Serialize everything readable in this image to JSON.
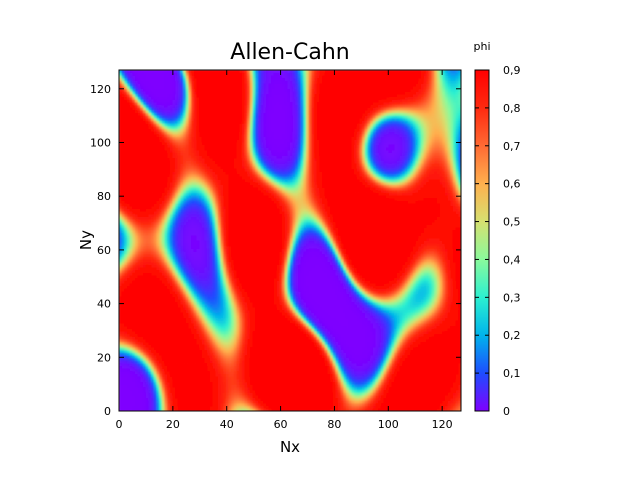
{
  "chart_data": {
    "type": "heatmap",
    "title": "Allen-Cahn",
    "xlabel": "Nx",
    "ylabel": "Ny",
    "colorbar_label": "phi",
    "xlim": [
      0,
      127
    ],
    "ylim": [
      0,
      127
    ],
    "x_ticks": [
      "0",
      "20",
      "40",
      "60",
      "80",
      "100",
      "120"
    ],
    "y_ticks": [
      "0",
      "20",
      "40",
      "60",
      "80",
      "100",
      "120"
    ],
    "color_range": [
      0,
      0.9
    ],
    "colorbar_ticks": [
      "0",
      "0,1",
      "0,2",
      "0,3",
      "0,4",
      "0,5",
      "0,6",
      "0,7",
      "0,8",
      "0,9"
    ],
    "colormap": "rainbow",
    "colormap_stops": [
      "#7f00ff",
      "#1e4dff",
      "#00b4eb",
      "#2cf0d0",
      "#8afa9c",
      "#d6e070",
      "#ffb04e",
      "#ff6a33",
      "#ff2a10",
      "#ff0000"
    ],
    "grid": false
  }
}
